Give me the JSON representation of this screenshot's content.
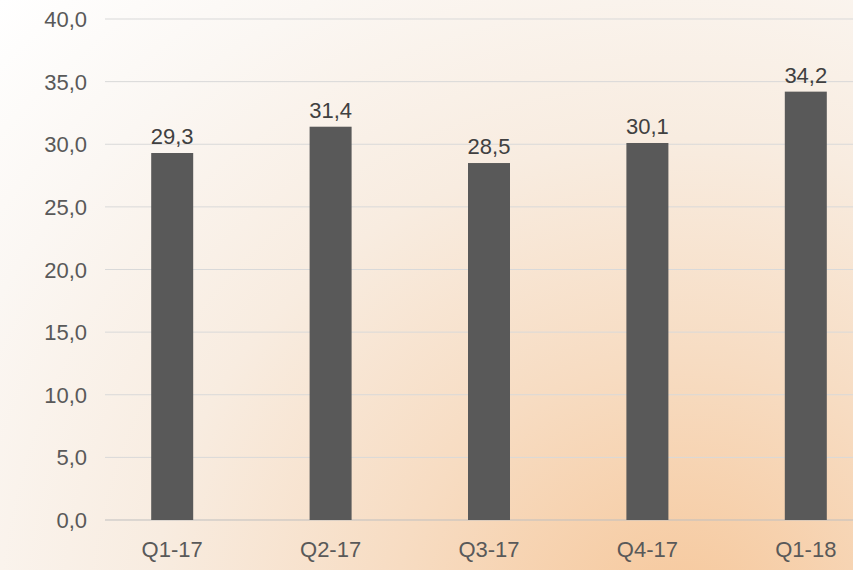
{
  "chart_data": {
    "type": "bar",
    "categories": [
      "Q1-17",
      "Q2-17",
      "Q3-17",
      "Q4-17",
      "Q1-18"
    ],
    "values": [
      29.3,
      31.4,
      28.5,
      30.1,
      34.2
    ],
    "value_labels": [
      "29,3",
      "31,4",
      "28,5",
      "30,1",
      "34,2"
    ],
    "color": "#595959",
    "ylim": [
      0,
      40
    ],
    "yticks": [
      {
        "value": 0,
        "label": "0,0"
      },
      {
        "value": 5,
        "label": "5,0"
      },
      {
        "value": 10,
        "label": "10,0"
      },
      {
        "value": 15,
        "label": "15,0"
      },
      {
        "value": 20,
        "label": "20,0"
      },
      {
        "value": 25,
        "label": "25,0"
      },
      {
        "value": 30,
        "label": "30,0"
      },
      {
        "value": 35,
        "label": "35,0"
      },
      {
        "value": 40,
        "label": "40,0"
      }
    ],
    "grid": true,
    "data_labels": true
  }
}
